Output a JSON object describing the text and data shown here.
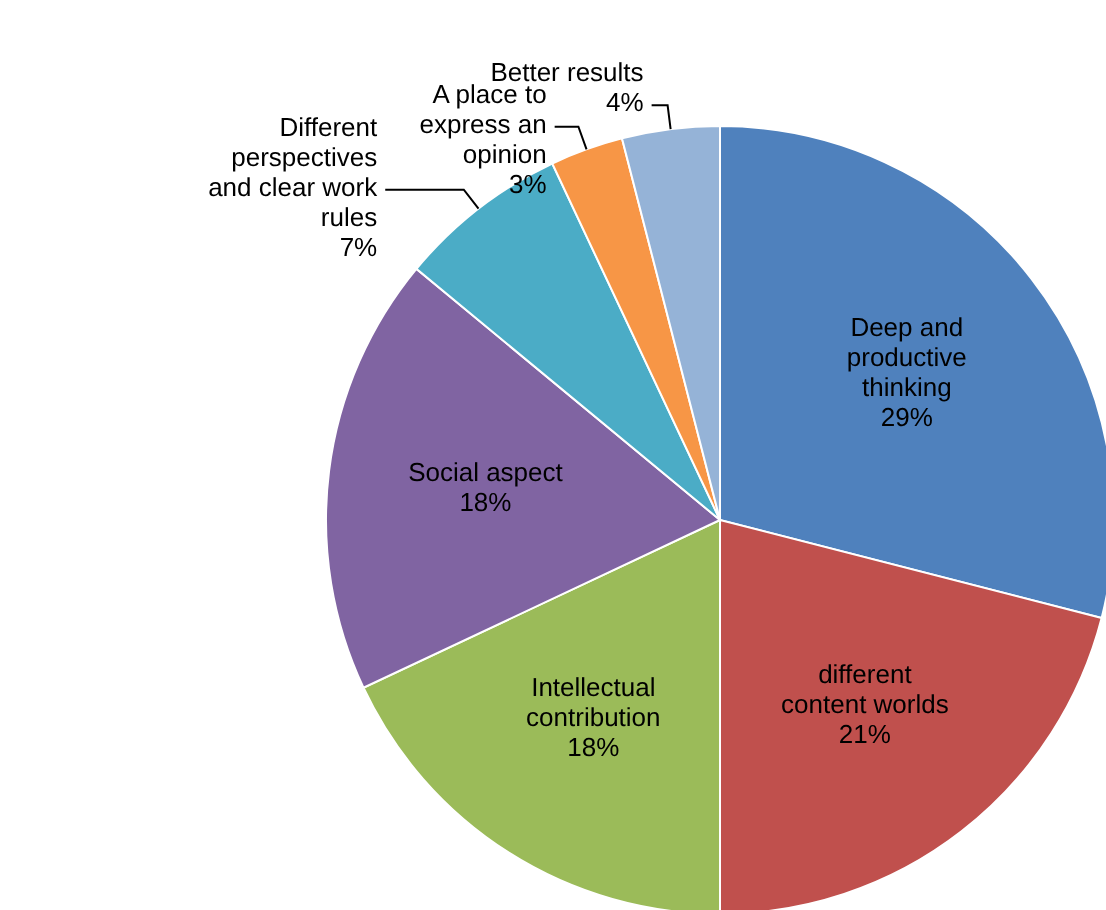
{
  "chart_data": {
    "type": "pie",
    "categories": [
      "Deep and productive thinking",
      "different content worlds",
      "Intellectual contribution",
      "Social aspect",
      "Different perspectives and clear work rules",
      "A place to express an opinion",
      "Better results"
    ],
    "values": [
      29,
      21,
      18,
      18,
      7,
      3,
      4
    ],
    "value_labels": [
      "29%",
      "21%",
      "18%",
      "18%",
      "7%",
      "3%",
      "4%"
    ],
    "colors": [
      "#4f81bd",
      "#c0504d",
      "#9bbb59",
      "#8064a2",
      "#4bacc6",
      "#f79646",
      "#95b3d7"
    ],
    "legend": false
  }
}
